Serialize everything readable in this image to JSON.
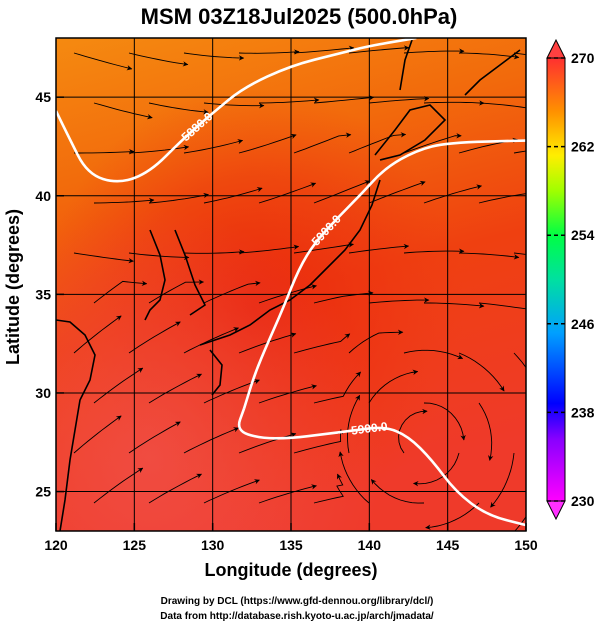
{
  "chart_data": {
    "type": "heatmap",
    "title": "MSM 03Z18Jul2025 (500.0hPa)",
    "xlabel": "Longitude (degrees)",
    "ylabel": "Latitude  (degrees)",
    "xlim": [
      120,
      150
    ],
    "ylim": [
      23,
      48
    ],
    "x_ticks": [
      "120",
      "125",
      "130",
      "135",
      "140",
      "145",
      "150"
    ],
    "y_ticks": [
      "25",
      "30",
      "35",
      "40",
      "45"
    ],
    "grid": true,
    "colorbar": {
      "range": [
        230,
        270
      ],
      "ticks": [
        "230",
        "238",
        "246",
        "254",
        "262",
        "270"
      ],
      "colors": [
        "#ff00ff",
        "#0000ff",
        "#00aaff",
        "#00ff66",
        "#ffff00",
        "#ff8800",
        "#ff0000"
      ]
    },
    "contours": [
      {
        "label": "5880.0",
        "points": [
          [
            120,
            44.3
          ],
          [
            120.8,
            43
          ],
          [
            122,
            41.1
          ],
          [
            124,
            40.6
          ],
          [
            126,
            41.2
          ],
          [
            128,
            42.8
          ],
          [
            130,
            44.2
          ],
          [
            132,
            45.5
          ],
          [
            135,
            46.6
          ],
          [
            138,
            47.2
          ],
          [
            140,
            47.6
          ],
          [
            143,
            48
          ]
        ]
      },
      {
        "label": "5900.0",
        "points": [
          [
            132,
            29.2
          ],
          [
            132.7,
            31
          ],
          [
            133.5,
            32.5
          ],
          [
            134.5,
            34.3
          ],
          [
            135.5,
            36.3
          ],
          [
            136.5,
            37.6
          ],
          [
            138,
            38.9
          ],
          [
            139.5,
            40.1
          ],
          [
            141,
            41.4
          ],
          [
            143,
            42.3
          ],
          [
            145,
            42.7
          ],
          [
            150,
            42.8
          ]
        ]
      },
      {
        "label": "5900.0",
        "points": [
          [
            132,
            29.2
          ],
          [
            131.5,
            28.1
          ],
          [
            133,
            27.7
          ],
          [
            135,
            27.7
          ],
          [
            137,
            27.9
          ],
          [
            139,
            28.1
          ],
          [
            141,
            28.3
          ],
          [
            142.5,
            27.8
          ],
          [
            144,
            26.6
          ],
          [
            145.5,
            25
          ],
          [
            147.5,
            23.8
          ],
          [
            150,
            23.3
          ]
        ]
      }
    ]
  },
  "credits": {
    "line1": "Drawing by DCL (https://www.gfd-dennou.org/library/dcl/)",
    "line2": "Data from http://database.rish.kyoto-u.ac.jp/arch/jmadata/"
  }
}
